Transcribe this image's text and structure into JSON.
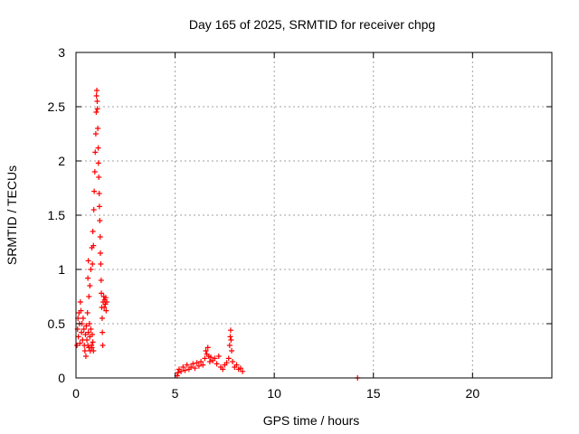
{
  "chart_data": {
    "type": "scatter",
    "title": "Day 165 of 2025, SRMTID for receiver chpg",
    "xlabel": "GPS time / hours",
    "ylabel": "SRMTID / TECUs",
    "xlim": [
      0,
      24
    ],
    "ylim": [
      0,
      3
    ],
    "xticks": [
      0,
      5,
      10,
      15,
      20
    ],
    "yticks": [
      0,
      0.5,
      1,
      1.5,
      2,
      2.5,
      3
    ],
    "xtick_labels": [
      "0",
      "5",
      "10",
      "15",
      "20"
    ],
    "ytick_labels": [
      "0",
      "0.5",
      "1",
      "1.5",
      "2",
      "2.5",
      "3"
    ],
    "grid": true,
    "marker": "plus",
    "color": "#ff0000",
    "series": [
      {
        "points": [
          [
            0.05,
            0.3
          ],
          [
            0.08,
            0.45
          ],
          [
            0.1,
            0.55
          ],
          [
            0.12,
            0.38
          ],
          [
            0.15,
            0.6
          ],
          [
            0.18,
            0.5
          ],
          [
            0.2,
            0.32
          ],
          [
            0.22,
            0.7
          ],
          [
            0.25,
            0.62
          ],
          [
            0.28,
            0.42
          ],
          [
            0.3,
            0.5
          ],
          [
            0.33,
            0.35
          ],
          [
            0.36,
            0.55
          ],
          [
            0.4,
            0.45
          ],
          [
            0.42,
            0.3
          ],
          [
            0.45,
            0.25
          ],
          [
            0.48,
            0.4
          ],
          [
            0.5,
            0.2
          ],
          [
            0.52,
            0.48
          ],
          [
            0.55,
            0.35
          ],
          [
            0.58,
            0.6
          ],
          [
            0.6,
            0.3
          ],
          [
            0.62,
            0.42
          ],
          [
            0.65,
            0.28
          ],
          [
            0.68,
            0.5
          ],
          [
            0.7,
            0.38
          ],
          [
            0.72,
            0.25
          ],
          [
            0.75,
            0.45
          ],
          [
            0.78,
            0.3
          ],
          [
            0.8,
            0.28
          ],
          [
            0.82,
            0.4
          ],
          [
            0.85,
            0.33
          ],
          [
            0.88,
            0.25
          ],
          [
            0.6,
            0.92
          ],
          [
            0.62,
            1.08
          ],
          [
            0.65,
            0.75
          ],
          [
            0.7,
            0.85
          ],
          [
            0.75,
            1.0
          ],
          [
            0.8,
            1.2
          ],
          [
            0.83,
            1.05
          ],
          [
            0.85,
            1.35
          ],
          [
            0.88,
            1.22
          ],
          [
            0.9,
            1.55
          ],
          [
            0.92,
            1.72
          ],
          [
            0.95,
            1.9
          ],
          [
            0.97,
            2.08
          ],
          [
            1.0,
            2.25
          ],
          [
            1.02,
            2.45
          ],
          [
            1.03,
            2.6
          ],
          [
            1.05,
            2.65
          ],
          [
            1.07,
            2.55
          ],
          [
            1.08,
            2.48
          ],
          [
            1.1,
            2.3
          ],
          [
            1.12,
            2.12
          ],
          [
            1.13,
            1.98
          ],
          [
            1.15,
            1.85
          ],
          [
            1.17,
            1.7
          ],
          [
            1.18,
            1.58
          ],
          [
            1.2,
            1.45
          ],
          [
            1.22,
            1.3
          ],
          [
            1.23,
            1.15
          ],
          [
            1.25,
            1.05
          ],
          [
            1.27,
            0.9
          ],
          [
            1.28,
            0.78
          ],
          [
            1.3,
            0.65
          ],
          [
            1.32,
            0.55
          ],
          [
            1.33,
            0.42
          ],
          [
            1.35,
            0.3
          ],
          [
            1.37,
            0.7
          ],
          [
            1.4,
            0.75
          ],
          [
            1.42,
            0.65
          ],
          [
            1.45,
            0.72
          ],
          [
            1.48,
            0.68
          ],
          [
            1.5,
            0.74
          ],
          [
            1.52,
            0.62
          ],
          [
            1.55,
            0.7
          ],
          [
            5.1,
            0.02
          ],
          [
            5.15,
            0.05
          ],
          [
            5.2,
            0.08
          ],
          [
            5.3,
            0.06
          ],
          [
            5.4,
            0.1
          ],
          [
            5.5,
            0.07
          ],
          [
            5.6,
            0.12
          ],
          [
            5.7,
            0.08
          ],
          [
            5.8,
            0.1
          ],
          [
            5.9,
            0.13
          ],
          [
            6.0,
            0.09
          ],
          [
            6.1,
            0.14
          ],
          [
            6.2,
            0.11
          ],
          [
            6.3,
            0.15
          ],
          [
            6.4,
            0.12
          ],
          [
            6.5,
            0.18
          ],
          [
            6.55,
            0.25
          ],
          [
            6.6,
            0.22
          ],
          [
            6.65,
            0.28
          ],
          [
            6.7,
            0.2
          ],
          [
            6.75,
            0.15
          ],
          [
            6.8,
            0.19
          ],
          [
            6.9,
            0.16
          ],
          [
            7.0,
            0.18
          ],
          [
            7.1,
            0.13
          ],
          [
            7.2,
            0.2
          ],
          [
            7.3,
            0.1
          ],
          [
            7.4,
            0.08
          ],
          [
            7.5,
            0.12
          ],
          [
            7.6,
            0.14
          ],
          [
            7.7,
            0.18
          ],
          [
            7.75,
            0.3
          ],
          [
            7.78,
            0.38
          ],
          [
            7.8,
            0.44
          ],
          [
            7.82,
            0.35
          ],
          [
            7.85,
            0.25
          ],
          [
            7.9,
            0.15
          ],
          [
            8.0,
            0.1
          ],
          [
            8.1,
            0.12
          ],
          [
            8.2,
            0.08
          ],
          [
            8.3,
            0.09
          ],
          [
            8.4,
            0.06
          ],
          [
            14.2,
            0.0
          ]
        ]
      }
    ]
  }
}
